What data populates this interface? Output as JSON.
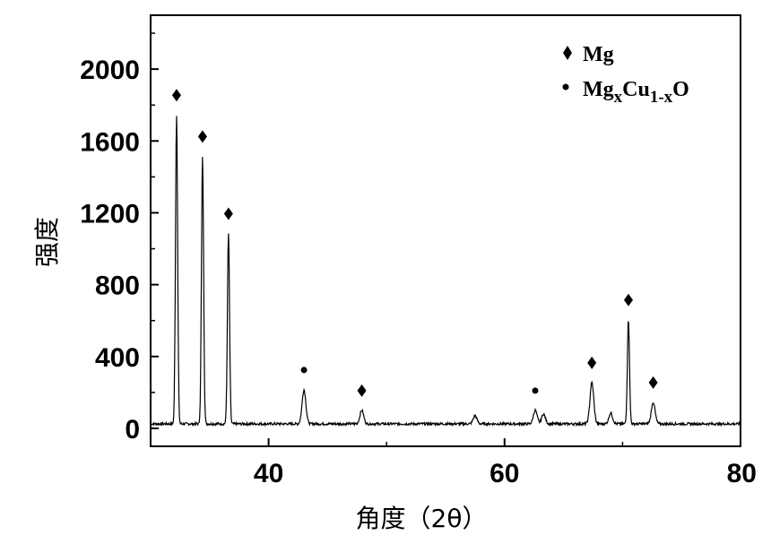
{
  "chart_data": {
    "type": "line",
    "xlabel": "角度（2θ）",
    "ylabel": "强度",
    "xlim": [
      30,
      80
    ],
    "ylim": [
      -100,
      2300
    ],
    "x_ticks": [
      40,
      60,
      80
    ],
    "x_tick_labels": [
      "40",
      "60",
      "80"
    ],
    "y_ticks": [
      0,
      400,
      800,
      1200,
      1600,
      2000
    ],
    "y_tick_labels": [
      "0",
      "400",
      "800",
      "1200",
      "1600",
      "2000"
    ],
    "grid": false,
    "legend_position": "top-right",
    "legend": [
      {
        "symbol": "diamond",
        "label": "Mg"
      },
      {
        "symbol": "dot",
        "label_main": "Mg",
        "label_sub1": "x",
        "label_mid": "Cu",
        "label_sub2": "1-x",
        "label_end": "O"
      }
    ],
    "series": [
      {
        "baseline": 25,
        "peaks": [
          {
            "x": 32.2,
            "height": 1720,
            "marker": "diamond"
          },
          {
            "x": 34.4,
            "height": 1490,
            "marker": "diamond"
          },
          {
            "x": 36.6,
            "height": 1060,
            "marker": "diamond"
          },
          {
            "x": 43.0,
            "height": 190,
            "marker": "dot"
          },
          {
            "x": 47.9,
            "height": 75,
            "marker": "diamond"
          },
          {
            "x": 57.5,
            "height": 45,
            "marker": null
          },
          {
            "x": 62.6,
            "height": 75,
            "marker": "dot"
          },
          {
            "x": 63.3,
            "height": 55,
            "marker": null
          },
          {
            "x": 67.4,
            "height": 230,
            "marker": "diamond"
          },
          {
            "x": 69.0,
            "height": 60,
            "marker": null
          },
          {
            "x": 70.5,
            "height": 580,
            "marker": "diamond"
          },
          {
            "x": 72.6,
            "height": 120,
            "marker": "diamond"
          }
        ]
      }
    ]
  }
}
